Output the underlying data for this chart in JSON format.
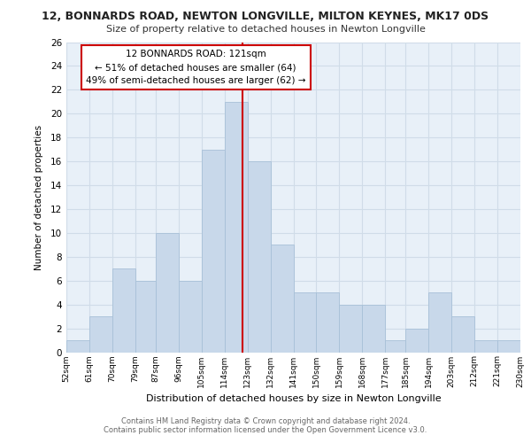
{
  "title_line1": "12, BONNARDS ROAD, NEWTON LONGVILLE, MILTON KEYNES, MK17 0DS",
  "title_line2": "Size of property relative to detached houses in Newton Longville",
  "xlabel": "Distribution of detached houses by size in Newton Longville",
  "ylabel": "Number of detached properties",
  "bin_labels": [
    "52sqm",
    "61sqm",
    "70sqm",
    "79sqm",
    "87sqm",
    "96sqm",
    "105sqm",
    "114sqm",
    "123sqm",
    "132sqm",
    "141sqm",
    "150sqm",
    "159sqm",
    "168sqm",
    "177sqm",
    "185sqm",
    "194sqm",
    "203sqm",
    "212sqm",
    "221sqm",
    "230sqm"
  ],
  "bin_edges": [
    52,
    61,
    70,
    79,
    87,
    96,
    105,
    114,
    123,
    132,
    141,
    150,
    159,
    168,
    177,
    185,
    194,
    203,
    212,
    221,
    230
  ],
  "counts": [
    1,
    3,
    7,
    6,
    10,
    6,
    17,
    21,
    16,
    9,
    5,
    5,
    4,
    4,
    1,
    2,
    5,
    3,
    1,
    1
  ],
  "bar_color": "#c8d8ea",
  "bar_edge_color": "#a8c0d8",
  "vline_x": 121,
  "vline_color": "#cc0000",
  "annotation_title": "12 BONNARDS ROAD: 121sqm",
  "annotation_line1": "← 51% of detached houses are smaller (64)",
  "annotation_line2": "49% of semi-detached houses are larger (62) →",
  "annotation_box_color": "#ffffff",
  "annotation_box_edge": "#cc0000",
  "ylim": [
    0,
    26
  ],
  "yticks": [
    0,
    2,
    4,
    6,
    8,
    10,
    12,
    14,
    16,
    18,
    20,
    22,
    24,
    26
  ],
  "footer_line1": "Contains HM Land Registry data © Crown copyright and database right 2024.",
  "footer_line2": "Contains public sector information licensed under the Open Government Licence v3.0.",
  "grid_color": "#d0dce8",
  "axes_bg": "#e8f0f8"
}
